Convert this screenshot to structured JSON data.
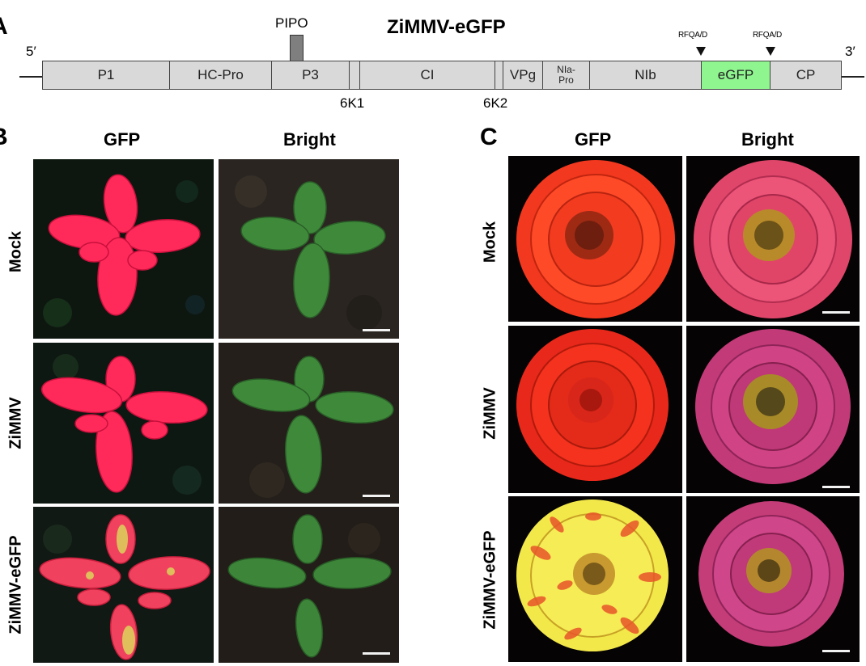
{
  "panel_a": {
    "letter": "A",
    "title": "ZiMMV-eGFP",
    "five_prime": "5′",
    "three_prime": "3′",
    "pipo": "PIPO",
    "segments": {
      "p1": "P1",
      "hcpro": "HC-Pro",
      "p3": "P3",
      "ci": "CI",
      "vpg": "VPg",
      "nia_line1": "NIa-",
      "nia_line2": "Pro",
      "nib": "NIb",
      "egfp": "eGFP",
      "cp": "CP"
    },
    "k1": "6K1",
    "k2": "6K2",
    "cleave_1": "RFQA/D",
    "cleave_2": "RFQA/D",
    "colors": {
      "segment": "#d9d9d9",
      "egfp": "#8ff58f",
      "pipo": "#7f7f7f"
    }
  },
  "panel_b": {
    "letter": "B",
    "col_gfp": "GFP",
    "col_bright": "Bright",
    "row_mock": "Mock",
    "row_zimmv": "ZiMMV",
    "row_egfp": "ZiMMV-eGFP"
  },
  "panel_c": {
    "letter": "C",
    "col_gfp": "GFP",
    "col_bright": "Bright",
    "row_mock": "Mock",
    "row_zimmv": "ZiMMV",
    "row_egfp": "ZiMMV-eGFP"
  }
}
